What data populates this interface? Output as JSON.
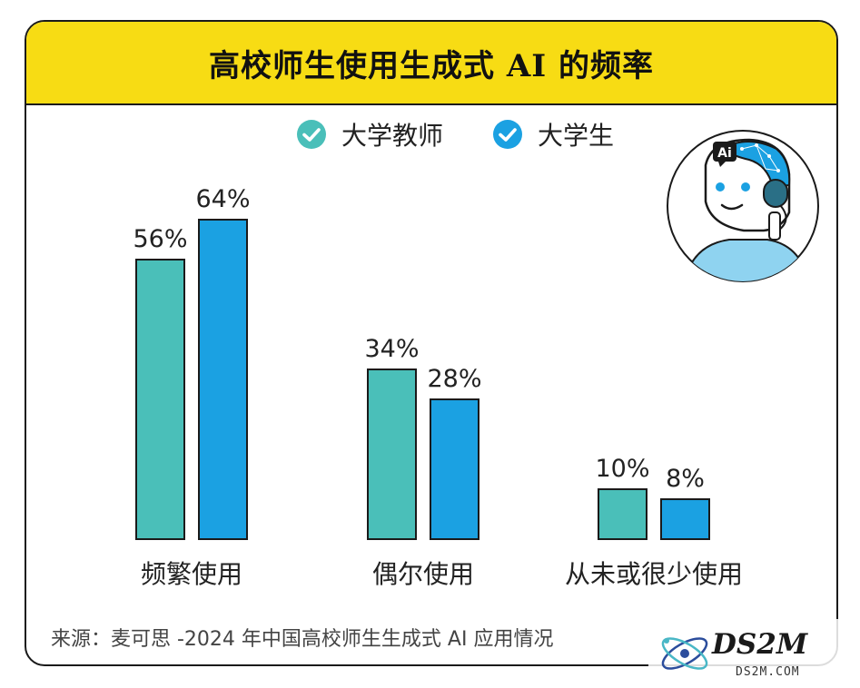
{
  "title": "高校师生使用生成式 AI 的频率",
  "source_text": "来源：麦可思 -2024 年中国高校师生生成式 AI 应用情况",
  "avatar_badge": "Ai",
  "watermark": {
    "logo": "DS2M",
    "url": "DS2M.COM"
  },
  "colors": {
    "teacher": "#4abfb9",
    "student": "#1ba1e2",
    "header": "#f7dc14"
  },
  "chart_data": {
    "type": "bar",
    "title": "高校师生使用生成式 AI 的频率",
    "categories": [
      "频繁使用",
      "偶尔使用",
      "从未或很少使用"
    ],
    "series": [
      {
        "name": "大学教师",
        "values": [
          56,
          34,
          10
        ],
        "labels": [
          "56%",
          "34%",
          "10%"
        ],
        "color": "#4abfb9"
      },
      {
        "name": "大学生",
        "values": [
          64,
          28,
          8
        ],
        "labels": [
          "64%",
          "28%",
          "8%"
        ],
        "color": "#1ba1e2"
      }
    ],
    "unit": "%",
    "ylim": [
      0,
      64
    ],
    "grid": false,
    "legend": "top-center"
  }
}
